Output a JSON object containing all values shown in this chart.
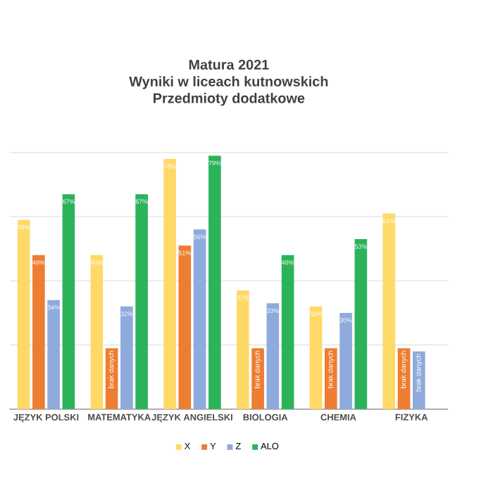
{
  "chart_data": {
    "type": "bar",
    "title": "Matura 2021\nWyniki w liceach kutnowskich\nPrzedmioty dodatkowe",
    "categories": [
      "JĘZYK POLSKI",
      "MATEMATYKA",
      "JĘZYK ANGIELSKI",
      "BIOLOGIA",
      "CHEMIA",
      "FIZYKA"
    ],
    "series": [
      {
        "name": "X",
        "color": "#ffd966",
        "values": [
          59,
          48,
          78,
          37,
          32,
          61
        ],
        "value_labels": [
          "59%",
          "48%",
          "78%",
          "37%",
          "32%",
          "61%"
        ]
      },
      {
        "name": "Y",
        "color": "#ed7d31",
        "values": [
          48,
          19,
          51,
          19,
          19,
          19
        ],
        "value_labels": [
          "48%",
          "brak danych",
          "51%",
          "brak danych",
          "brak danych",
          "brak danych"
        ]
      },
      {
        "name": "Z",
        "color": "#8faadc",
        "values": [
          34,
          32,
          56,
          33,
          30,
          18
        ],
        "value_labels": [
          "34%",
          "32%",
          "56%",
          "33%",
          "30%",
          "brak danych"
        ]
      },
      {
        "name": "ALO",
        "color": "#2bb35a",
        "values": [
          67,
          67,
          79,
          48,
          53,
          null
        ],
        "value_labels": [
          "67%",
          "67%",
          "79%",
          "48%",
          "53%",
          null
        ]
      }
    ],
    "grid": "y",
    "tick_labels": "x",
    "legend": "bottom"
  }
}
